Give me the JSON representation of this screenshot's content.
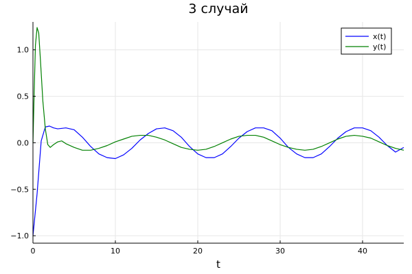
{
  "chart_data": {
    "type": "line",
    "title": "3 случай",
    "xlabel": "t",
    "ylabel": "",
    "xlim": [
      0,
      45
    ],
    "ylim": [
      -1.08,
      1.3
    ],
    "xticks": [
      0,
      10,
      20,
      30,
      40
    ],
    "xtick_labels": [
      "0",
      "10",
      "20",
      "30",
      "40"
    ],
    "yticks": [
      -1.0,
      -0.5,
      0.0,
      0.5,
      1.0
    ],
    "ytick_labels": [
      "−1.0",
      "−0.5",
      "0.0",
      "0.5",
      "1.0"
    ],
    "grid": true,
    "legend_position": "top-right",
    "series": [
      {
        "name": "x(t)",
        "color": "#0000ff",
        "x": [
          0,
          0.5,
          1.0,
          1.5,
          2.0,
          2.5,
          3.0,
          4.0,
          5.0,
          6.0,
          7.0,
          8.0,
          9.0,
          10.0,
          11.0,
          12.0,
          13.0,
          14.0,
          15.0,
          16.0,
          17.0,
          18.0,
          19.0,
          20.0,
          21.0,
          22.0,
          23.0,
          24.0,
          25.0,
          26.0,
          27.0,
          28.0,
          29.0,
          30.0,
          31.0,
          32.0,
          33.0,
          34.0,
          35.0,
          36.0,
          37.0,
          38.0,
          39.0,
          40.0,
          41.0,
          42.0,
          43.0,
          44.0,
          45.0
        ],
        "y": [
          -1.0,
          -0.55,
          0.02,
          0.17,
          0.18,
          0.16,
          0.15,
          0.16,
          0.14,
          0.06,
          -0.04,
          -0.12,
          -0.16,
          -0.17,
          -0.13,
          -0.06,
          0.03,
          0.1,
          0.15,
          0.16,
          0.13,
          0.06,
          -0.04,
          -0.12,
          -0.16,
          -0.16,
          -0.12,
          -0.04,
          0.05,
          0.12,
          0.16,
          0.16,
          0.13,
          0.05,
          -0.05,
          -0.12,
          -0.16,
          -0.16,
          -0.12,
          -0.04,
          0.05,
          0.12,
          0.16,
          0.16,
          0.13,
          0.06,
          -0.03,
          -0.1,
          -0.05
        ]
      },
      {
        "name": "y(t)",
        "color": "#008000",
        "x": [
          0,
          0.15,
          0.3,
          0.5,
          0.7,
          0.9,
          1.2,
          1.5,
          1.8,
          2.1,
          2.5,
          3.0,
          3.5,
          4.0,
          5.0,
          6.0,
          7.0,
          8.0,
          9.0,
          10.0,
          11.0,
          12.0,
          13.0,
          14.0,
          15.0,
          16.0,
          17.0,
          18.0,
          19.0,
          20.0,
          21.0,
          22.0,
          23.0,
          24.0,
          25.0,
          26.0,
          27.0,
          28.0,
          29.0,
          30.0,
          31.0,
          32.0,
          33.0,
          34.0,
          35.0,
          36.0,
          37.0,
          38.0,
          39.0,
          40.0,
          41.0,
          42.0,
          43.0,
          44.0,
          45.0
        ],
        "y": [
          0.0,
          0.55,
          1.05,
          1.24,
          1.18,
          0.9,
          0.45,
          0.15,
          -0.02,
          -0.05,
          -0.02,
          0.01,
          0.02,
          -0.01,
          -0.05,
          -0.08,
          -0.08,
          -0.06,
          -0.03,
          0.01,
          0.04,
          0.07,
          0.08,
          0.08,
          0.06,
          0.03,
          -0.01,
          -0.05,
          -0.07,
          -0.08,
          -0.07,
          -0.04,
          0.0,
          0.04,
          0.07,
          0.08,
          0.08,
          0.06,
          0.02,
          -0.02,
          -0.05,
          -0.07,
          -0.08,
          -0.07,
          -0.04,
          0.0,
          0.04,
          0.07,
          0.08,
          0.07,
          0.05,
          0.01,
          -0.03,
          -0.06,
          -0.08
        ]
      }
    ]
  }
}
